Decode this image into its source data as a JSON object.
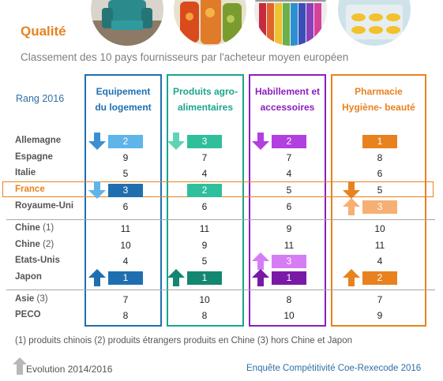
{
  "title": "Qualité",
  "subtitle": "Classement des 10 pays fournisseurs par l'acheteur moyen européen",
  "rank_label": "Rang 2016",
  "footnote": "(1) produits chinois  (2) produits étrangers produits en Chine (3) hors Chine et Japon",
  "legend": "Evolution 2014/2016",
  "source": "Enquête Compétitivité Coe-Rexecode 2016",
  "colors": {
    "equipement": "#1f6fb0",
    "agro": "#1aa58e",
    "habillement": "#8b1fbd",
    "pharmacie": "#e8821e"
  },
  "photos": [
    "armchair-photo",
    "jars-photo",
    "clothes-photo",
    "pills-photo"
  ],
  "chart_data": {
    "type": "table",
    "title": "Qualité",
    "subtitle": "Classement des 10 pays fournisseurs par l'acheteur moyen européen",
    "columns": [
      {
        "key": "equipement",
        "name_line1": "Equipement",
        "name_line2": "du logement"
      },
      {
        "key": "agro",
        "name_line1": "Produits agro-",
        "name_line2": "alimentaires"
      },
      {
        "key": "habillement",
        "name_line1": "Habillement et",
        "name_line2": "accessoires"
      },
      {
        "key": "pharmacie",
        "name_line1": "Pharmacie",
        "name_line2": "Hygiène- beauté"
      }
    ],
    "rows": [
      {
        "name": "Allemagne",
        "suffix": "",
        "values": [
          2,
          3,
          2,
          1
        ]
      },
      {
        "name": "Espagne",
        "suffix": "",
        "values": [
          9,
          7,
          7,
          8
        ]
      },
      {
        "name": "Italie",
        "suffix": "",
        "values": [
          5,
          4,
          4,
          6
        ]
      },
      {
        "name": "France",
        "suffix": "",
        "values": [
          3,
          2,
          5,
          5
        ]
      },
      {
        "name": "Royaume-Uni",
        "suffix": "",
        "values": [
          6,
          6,
          6,
          3
        ]
      },
      {
        "name": "Chine",
        "suffix": "(1)",
        "values": [
          11,
          11,
          9,
          10
        ]
      },
      {
        "name": "Chine",
        "suffix": "(2)",
        "values": [
          10,
          9,
          11,
          11
        ]
      },
      {
        "name": "Etats-Unis",
        "suffix": "",
        "values": [
          4,
          5,
          3,
          4
        ]
      },
      {
        "name": "Japon",
        "suffix": "",
        "values": [
          1,
          1,
          1,
          2
        ]
      },
      {
        "name": "Asie",
        "suffix": "(3)",
        "values": [
          7,
          10,
          8,
          7
        ]
      },
      {
        "name": "PECO",
        "suffix": "",
        "values": [
          8,
          8,
          10,
          9
        ]
      }
    ],
    "highlights": [
      {
        "row": 0,
        "col": 0,
        "shade": "light"
      },
      {
        "row": 0,
        "col": 1,
        "shade": "medium"
      },
      {
        "row": 0,
        "col": 2,
        "shade": "medium"
      },
      {
        "row": 0,
        "col": 3,
        "shade": "dark"
      },
      {
        "row": 3,
        "col": 0,
        "shade": "dark"
      },
      {
        "row": 3,
        "col": 1,
        "shade": "medium"
      },
      {
        "row": 4,
        "col": 3,
        "shade": "light"
      },
      {
        "row": 7,
        "col": 2,
        "shade": "light"
      },
      {
        "row": 8,
        "col": 0,
        "shade": "dark"
      },
      {
        "row": 8,
        "col": 1,
        "shade": "dark"
      },
      {
        "row": 8,
        "col": 2,
        "shade": "dark"
      },
      {
        "row": 8,
        "col": 3,
        "shade": "dark"
      }
    ],
    "arrows": [
      {
        "row": 0,
        "col": 0,
        "direction": "down",
        "shade": "medium"
      },
      {
        "row": 0,
        "col": 1,
        "direction": "down",
        "shade": "light"
      },
      {
        "row": 0,
        "col": 2,
        "direction": "down",
        "shade": "medium"
      },
      {
        "row": 3,
        "col": 0,
        "direction": "down",
        "shade": "light"
      },
      {
        "row": 3,
        "col": 3,
        "direction": "down",
        "shade": "dark"
      },
      {
        "row": 4,
        "col": 3,
        "direction": "up",
        "shade": "light"
      },
      {
        "row": 7,
        "col": 2,
        "direction": "up",
        "shade": "light"
      },
      {
        "row": 8,
        "col": 0,
        "direction": "up",
        "shade": "dark"
      },
      {
        "row": 8,
        "col": 1,
        "direction": "up",
        "shade": "dark"
      },
      {
        "row": 8,
        "col": 2,
        "direction": "up",
        "shade": "dark"
      },
      {
        "row": 8,
        "col": 3,
        "direction": "up",
        "shade": "dark"
      }
    ]
  }
}
